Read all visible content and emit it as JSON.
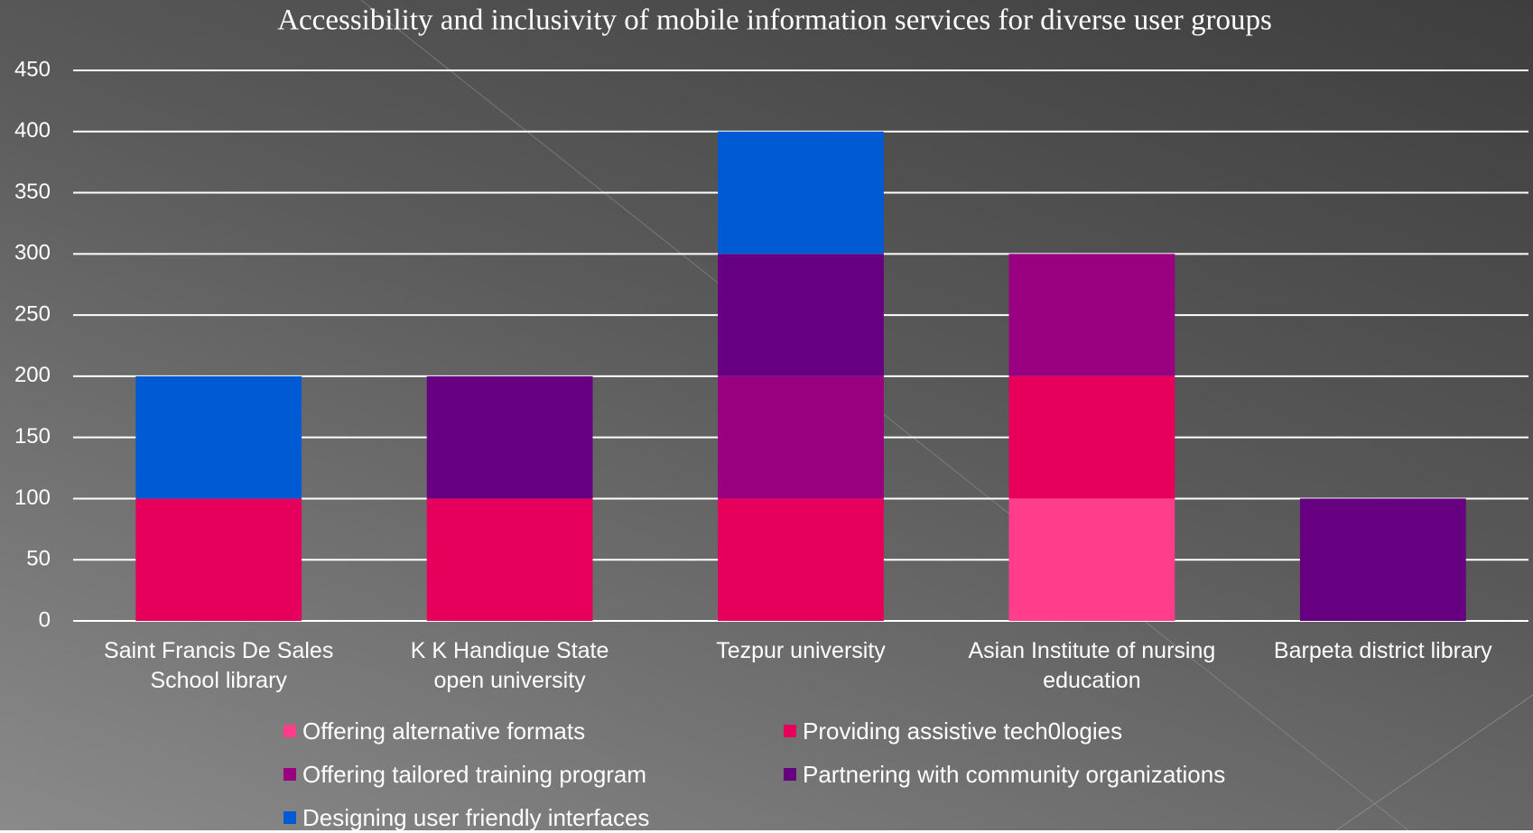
{
  "chart_data": {
    "type": "stacked_bar",
    "title": "Accessibility and inclusivity of mobile information services for diverse user groups",
    "categories": [
      "Saint Francis De Sales\nSchool library",
      "K K Handique State\nopen university",
      "Tezpur university",
      "Asian Institute of nursing\neducation",
      "Barpeta district library"
    ],
    "series": [
      {
        "name": "Offering alternative formats",
        "color": "#ff3d8b",
        "values": [
          0,
          0,
          0,
          100,
          0
        ]
      },
      {
        "name": "Providing assistive tech0logies",
        "color": "#e6005c",
        "values": [
          100,
          100,
          100,
          100,
          0
        ]
      },
      {
        "name": "Offering tailored training program",
        "color": "#990080",
        "values": [
          0,
          0,
          100,
          100,
          0
        ]
      },
      {
        "name": "Partnering with community organizations",
        "color": "#660080",
        "values": [
          0,
          100,
          100,
          0,
          100
        ]
      },
      {
        "name": "Designing user friendly interfaces",
        "color": "#005ad4",
        "values": [
          100,
          0,
          100,
          0,
          0
        ]
      }
    ],
    "ylim": [
      0,
      450
    ],
    "yticks": [
      0,
      50,
      100,
      150,
      200,
      250,
      300,
      350,
      400,
      450
    ],
    "grid": true
  }
}
